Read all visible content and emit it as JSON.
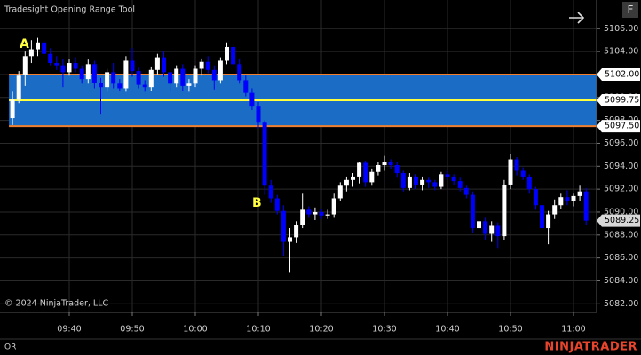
{
  "chart_data": {
    "type": "candlestick",
    "title": "Tradesight Opening Range Tool",
    "copyright": "© 2024 NinjaTrader, LLC",
    "tab_label": "OR",
    "brand": "NINJATRADER",
    "button_label": "F",
    "annotations": [
      "A",
      "B"
    ],
    "up_color": "#ffffff",
    "down_color": "#0000ff",
    "x": [
      "09:31",
      "09:32",
      "09:33",
      "09:34",
      "09:35",
      "09:36",
      "09:37",
      "09:38",
      "09:39",
      "09:40",
      "09:41",
      "09:42",
      "09:43",
      "09:44",
      "09:45",
      "09:46",
      "09:47",
      "09:48",
      "09:49",
      "09:50",
      "09:51",
      "09:52",
      "09:53",
      "09:54",
      "09:55",
      "09:56",
      "09:57",
      "09:58",
      "09:59",
      "10:00",
      "10:01",
      "10:02",
      "10:03",
      "10:04",
      "10:05",
      "10:06",
      "10:07",
      "10:08",
      "10:09",
      "10:10",
      "10:11",
      "10:12",
      "10:13",
      "10:14",
      "10:15",
      "10:16",
      "10:17",
      "10:18",
      "10:19",
      "10:20",
      "10:21",
      "10:22",
      "10:23",
      "10:24",
      "10:25",
      "10:26",
      "10:27",
      "10:28",
      "10:29",
      "10:30",
      "10:31",
      "10:32",
      "10:33",
      "10:34",
      "10:35",
      "10:36",
      "10:37",
      "10:38",
      "10:39",
      "10:40",
      "10:41",
      "10:42",
      "10:43",
      "10:44",
      "10:45",
      "10:46",
      "10:47",
      "10:48",
      "10:49",
      "10:50",
      "10:51",
      "10:52",
      "10:53",
      "10:54",
      "10:55",
      "10:56",
      "10:57",
      "10:58",
      "10:59",
      "11:00",
      "11:01",
      "11:02"
    ],
    "open": [
      5098.2,
      5099.8,
      5102,
      5103.6,
      5104.2,
      5104.8,
      5103.8,
      5103,
      5102.8,
      5102.2,
      5103,
      5102.5,
      5101.6,
      5102.9,
      5101.3,
      5100.9,
      5102.2,
      5101.2,
      5100.8,
      5103.2,
      5102.3,
      5101.1,
      5100.9,
      5102.4,
      5103.5,
      5102.2,
      5101.2,
      5102.5,
      5101,
      5101.2,
      5102.5,
      5103.1,
      5102.4,
      5101.5,
      5103.2,
      5104.4,
      5102.9,
      5101.5,
      5100.4,
      5099.2,
      5097.8,
      5092.3,
      5091.2,
      5090.1,
      5087.4,
      5087.8,
      5088.9,
      5090.2,
      5089.8,
      5090,
      5089.7,
      5089.8,
      5091.2,
      5092.3,
      5092.8,
      5093.1,
      5094.3,
      5092.6,
      5093.5,
      5094.1,
      5094.4,
      5094.1,
      5093.4,
      5092.1,
      5093.1,
      5092.4,
      5092.8,
      5092.6,
      5092.2,
      5093.3,
      5093.1,
      5092.7,
      5092.1,
      5091.5,
      5088.6,
      5089.2,
      5088.1,
      5088.8,
      5087.9,
      5092.4,
      5094.6,
      5093.6,
      5093.1,
      5092,
      5090.6,
      5088.6,
      5089.8,
      5090.6,
      5091.3,
      5091,
      5091.4,
      5091.8
    ],
    "high": [
      5100.5,
      5102.3,
      5104,
      5105,
      5105.2,
      5105,
      5104.3,
      5103.6,
      5103.4,
      5103.3,
      5103.5,
      5102.8,
      5103.3,
      5103.2,
      5101.7,
      5102.5,
      5103,
      5101.6,
      5103.6,
      5104.3,
      5102.6,
      5101.5,
      5102.7,
      5103.8,
      5104,
      5102.5,
      5102.8,
      5102.9,
      5101.6,
      5102.8,
      5103.4,
      5103.6,
      5102.8,
      5103.5,
      5104.8,
      5104.6,
      5103.4,
      5101.9,
      5100.8,
      5099.6,
      5098,
      5092.8,
      5091.5,
      5090.6,
      5088.6,
      5089.2,
      5091.6,
      5090.5,
      5090.4,
      5090.3,
      5090.2,
      5091.6,
      5092.6,
      5093.1,
      5093.4,
      5094.4,
      5094.5,
      5093.8,
      5094.4,
      5094.9,
      5094.6,
      5094.4,
      5093.6,
      5093.4,
      5093.3,
      5093.1,
      5093,
      5092.8,
      5093.5,
      5093.6,
      5093.3,
      5093,
      5092.3,
      5091.8,
      5089.6,
      5089.5,
      5089.2,
      5089.1,
      5092.8,
      5095.1,
      5094.8,
      5093.9,
      5093.3,
      5092.2,
      5090.9,
      5090.1,
      5091.1,
      5091.6,
      5091.9,
      5091.6,
      5092.3,
      5092.1
    ],
    "low": [
      5097.6,
      5099.5,
      5101,
      5103,
      5103.6,
      5103.5,
      5102.8,
      5102.4,
      5100.9,
      5101.9,
      5102.2,
      5101.2,
      5101.2,
      5100.8,
      5098.5,
      5100.5,
      5100.8,
      5100.6,
      5100.5,
      5101.8,
      5100.8,
      5100.5,
      5100.6,
      5102,
      5101.8,
      5100.6,
      5100.9,
      5100.6,
      5100.5,
      5100.9,
      5101.9,
      5102.1,
      5100.7,
      5101.2,
      5102.9,
      5102.6,
      5101.2,
      5100.1,
      5098.9,
      5097.3,
      5091.5,
      5090.8,
      5089.8,
      5086.2,
      5084.7,
      5087.3,
      5088.6,
      5089.5,
      5089.3,
      5089.4,
      5089.4,
      5089.5,
      5091,
      5091.8,
      5092.2,
      5092.5,
      5092.2,
      5092.3,
      5093.2,
      5093.6,
      5093.8,
      5093,
      5091.8,
      5091.9,
      5092,
      5091.9,
      5092.1,
      5091.9,
      5092,
      5092.8,
      5092.4,
      5091.8,
      5091.2,
      5088.2,
      5088,
      5087.6,
      5087.4,
      5086.8,
      5087.6,
      5092,
      5093.2,
      5092.8,
      5091.6,
      5090.2,
      5088.2,
      5087.2,
      5089.4,
      5090.3,
      5090.6,
      5090.5,
      5091,
      5088.9
    ],
    "close": [
      5099.8,
      5101.9,
      5103.6,
      5104.2,
      5104.8,
      5103.8,
      5103,
      5102.8,
      5102.2,
      5103,
      5102.5,
      5101.6,
      5102.9,
      5101.3,
      5100.9,
      5102.2,
      5101.2,
      5100.8,
      5103.2,
      5102.3,
      5101.1,
      5100.9,
      5102.4,
      5103.5,
      5102.2,
      5101.2,
      5102.5,
      5101,
      5101.2,
      5102.5,
      5103.1,
      5102.4,
      5101.5,
      5103.2,
      5104.4,
      5102.9,
      5101.5,
      5100.4,
      5099.2,
      5097.8,
      5092.3,
      5091.2,
      5090.1,
      5087.4,
      5087.8,
      5088.9,
      5090.2,
      5089.8,
      5090,
      5089.7,
      5089.8,
      5091.2,
      5092.3,
      5092.8,
      5093.1,
      5094.3,
      5092.6,
      5093.5,
      5094.1,
      5094.4,
      5094.1,
      5093.4,
      5092.1,
      5093.1,
      5092.4,
      5092.8,
      5092.6,
      5092.2,
      5093.3,
      5093.1,
      5092.7,
      5092.1,
      5091.5,
      5088.6,
      5089.2,
      5088.1,
      5088.8,
      5087.9,
      5092.4,
      5094.6,
      5093.6,
      5093.1,
      5092,
      5090.6,
      5088.6,
      5089.8,
      5090.6,
      5091.3,
      5091,
      5091.4,
      5091.8,
      5089.25
    ],
    "xticks": [
      "09:40",
      "09:50",
      "10:00",
      "10:10",
      "10:20",
      "10:30",
      "10:40",
      "10:50",
      "11:00"
    ],
    "ylim": [
      5081.25,
      5108.5
    ],
    "yticks": [
      {
        "value": 5082,
        "label": "5082.00"
      },
      {
        "value": 5084,
        "label": "5084.00"
      },
      {
        "value": 5086,
        "label": "5086.00"
      },
      {
        "value": 5088,
        "label": "5088.00"
      },
      {
        "value": 5090,
        "label": "5090.00"
      },
      {
        "value": 5092,
        "label": "5092.00"
      },
      {
        "value": 5094,
        "label": "5094.00"
      },
      {
        "value": 5096,
        "label": "5096.00"
      },
      {
        "value": 5098,
        "label": "5098.00"
      },
      {
        "value": 5100,
        "label": "5100.00"
      },
      {
        "value": 5102,
        "label": "5102.00"
      },
      {
        "value": 5104,
        "label": "5104.00"
      },
      {
        "value": 5106,
        "label": "5106.00"
      }
    ],
    "grid": true,
    "opening_range": {
      "high": {
        "value": 5102,
        "label": "5102.00"
      },
      "mid": {
        "value": 5099.75,
        "label": "5099.75"
      },
      "low": {
        "value": 5097.5,
        "label": "5097.50"
      },
      "fill": "#1a6cc4",
      "edge_color": "#f08030",
      "mid_color": "#ffff40"
    },
    "last_price": {
      "value": 5089.25,
      "label": "5089.25"
    }
  }
}
